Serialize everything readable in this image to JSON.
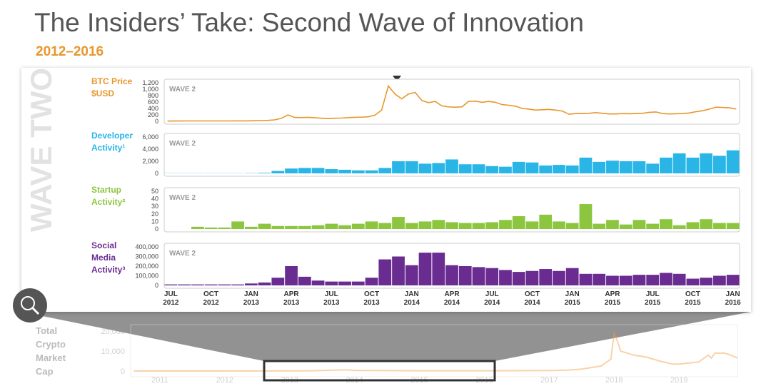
{
  "header": {
    "title": "The Insiders’ Take: Second Wave of Innovation",
    "subtitle": "2012–2016",
    "side_label": "WAVE TWO"
  },
  "chart_data": [
    {
      "type": "line",
      "label": "BTC Price $USD",
      "tag": "WAVE 2",
      "color": "#e8962e",
      "values": [
        7,
        8,
        10,
        11,
        11,
        12,
        12,
        11,
        11,
        12,
        13,
        13,
        14,
        17,
        22,
        30,
        45,
        90,
        200,
        120,
        115,
        125,
        110,
        95,
        85,
        95,
        100,
        115,
        125,
        130,
        140,
        190,
        350,
        1100,
        850,
        700,
        850,
        900,
        650,
        580,
        620,
        480,
        450,
        440,
        450,
        620,
        630,
        590,
        620,
        590,
        520,
        500,
        470,
        400,
        380,
        350,
        360,
        370,
        350,
        320,
        220,
        240,
        240,
        250,
        270,
        250,
        230,
        230,
        240,
        235,
        240,
        250,
        280,
        290,
        240,
        230,
        235,
        240,
        260,
        300,
        330,
        380,
        440,
        430,
        420,
        380
      ],
      "ylim": [
        0,
        1200
      ],
      "yticks": [
        0,
        200,
        400,
        600,
        800,
        {
          "value": 1000,
          "label": "1,000"
        },
        {
          "value": 1200,
          "label": "1,200"
        }
      ]
    },
    {
      "type": "bar",
      "label": "Developer Activity¹",
      "tag": "WAVE 2",
      "color": "#29b6e6",
      "values": [
        30,
        30,
        30,
        30,
        30,
        30,
        50,
        100,
        400,
        800,
        900,
        900,
        700,
        600,
        500,
        500,
        900,
        2000,
        2000,
        1600,
        1700,
        2300,
        1500,
        1500,
        1200,
        1100,
        1900,
        1800,
        1300,
        1400,
        1300,
        2600,
        1900,
        2100,
        2000,
        2000,
        1600,
        2600,
        3300,
        2600,
        3300,
        2900,
        3800
      ],
      "ylim": [
        0,
        6000
      ],
      "yticks": [
        0,
        {
          "value": 2000,
          "label": "2,000"
        },
        {
          "value": 4000,
          "label": "4,000"
        },
        {
          "value": 6000,
          "label": "6,000"
        }
      ]
    },
    {
      "type": "bar",
      "label": "Startup Activity²",
      "tag": "WAVE 2",
      "color": "#8cc63f",
      "values": [
        0,
        0,
        3,
        2,
        2,
        10,
        3,
        7,
        4,
        4,
        4,
        5,
        7,
        5,
        7,
        10,
        8,
        16,
        8,
        10,
        12,
        9,
        8,
        8,
        9,
        12,
        17,
        10,
        19,
        10,
        8,
        33,
        7,
        12,
        6,
        12,
        7,
        13,
        5,
        9,
        13,
        8,
        8
      ],
      "ylim": [
        0,
        50
      ],
      "yticks": [
        0,
        10,
        20,
        30,
        40,
        50
      ]
    },
    {
      "type": "bar",
      "label": "Social Media Activity³",
      "tag": "WAVE 2",
      "color": "#6a2c91",
      "categories": [
        "JUL 2012",
        null,
        null,
        "OCT 2012",
        null,
        null,
        "JAN 2013",
        null,
        null,
        "APR 2013",
        null,
        null,
        "JUL 2013",
        null,
        null,
        "OCT 2013",
        null,
        null,
        "JAN 2014",
        null,
        null,
        "APR 2014",
        null,
        null,
        "JUL 2014",
        null,
        null,
        "OCT 2014",
        null,
        null,
        "JAN 2015",
        null,
        null,
        "APR 2015",
        null,
        null,
        "JUL 2015",
        null,
        null,
        "OCT 2015",
        null,
        null,
        "JAN 2016"
      ],
      "values": [
        10000,
        10000,
        10000,
        10000,
        10000,
        10000,
        20000,
        30000,
        80000,
        200000,
        90000,
        50000,
        40000,
        40000,
        40000,
        80000,
        270000,
        300000,
        210000,
        340000,
        340000,
        210000,
        200000,
        190000,
        180000,
        160000,
        140000,
        150000,
        170000,
        150000,
        180000,
        120000,
        120000,
        100000,
        100000,
        110000,
        110000,
        130000,
        120000,
        70000,
        80000,
        100000,
        110000
      ],
      "ylim": [
        0,
        400000
      ],
      "yticks": [
        0,
        {
          "value": 100000,
          "label": "100,000"
        },
        {
          "value": 200000,
          "label": "200,000"
        },
        {
          "value": 300000,
          "label": "300,000"
        },
        {
          "value": 400000,
          "label": "400,000"
        }
      ]
    },
    {
      "type": "line",
      "label": "Total Crypto Market Cap",
      "color": "#f0a040",
      "x": [
        2010.6,
        2012,
        2013.3,
        2013.9,
        2014,
        2015,
        2016,
        2017,
        2017.3,
        2017.5,
        2017.8,
        2017.95,
        2018,
        2018.05,
        2018.1,
        2018.3,
        2018.5,
        2018.7,
        2018.9,
        2019,
        2019.3,
        2019.45,
        2019.5,
        2019.55,
        2019.7,
        2019.8,
        2019.9
      ],
      "values": [
        0,
        0,
        100,
        600,
        300,
        150,
        150,
        200,
        500,
        1000,
        2500,
        6000,
        19000,
        15000,
        10000,
        8000,
        7000,
        5000,
        3500,
        3500,
        4500,
        8000,
        6500,
        9000,
        9000,
        8000,
        6500
      ],
      "xlim": [
        2010.55,
        2019.9
      ],
      "xticks": [
        2011,
        2012,
        2013,
        2014,
        2015,
        2016,
        2017,
        2018,
        2019
      ],
      "ylim": [
        0,
        21500
      ],
      "yticks": [
        0,
        {
          "value": 10000,
          "label": "10,000"
        },
        {
          "value": 20000,
          "label": "20,000"
        }
      ]
    }
  ]
}
